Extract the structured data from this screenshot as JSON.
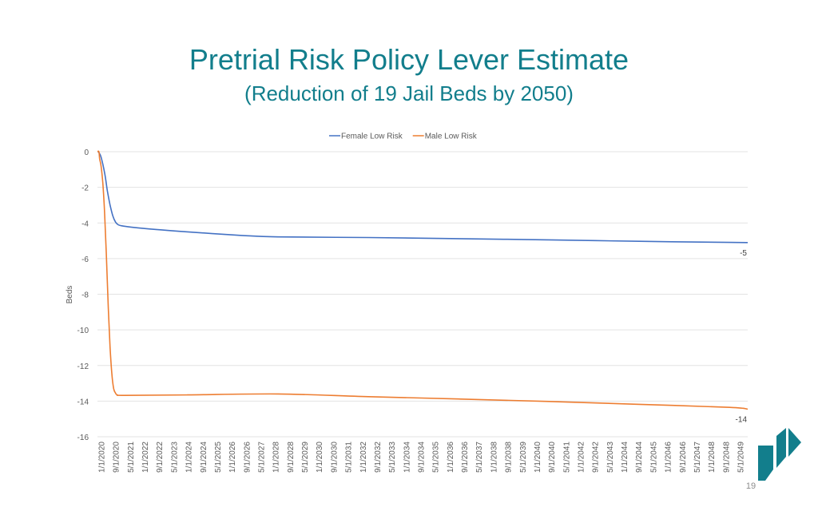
{
  "slide": {
    "title": "Pretrial Risk Policy Lever Estimate",
    "subtitle": "(Reduction of 19 Jail Beds by 2050)",
    "page_number": "19",
    "title_color": "#127e8c",
    "logo_color": "#127e8c",
    "logo_icon": "agency-logo-icon"
  },
  "chart_data": {
    "type": "line",
    "title": "",
    "xlabel": "",
    "ylabel": "Beds",
    "ylim": [
      -16,
      0
    ],
    "yticks": [
      0,
      -2,
      -4,
      -6,
      -8,
      -10,
      -12,
      -14,
      -16
    ],
    "grid": true,
    "legend_position": "top",
    "categories": [
      "1/1/2020",
      "9/1/2020",
      "5/1/2021",
      "1/1/2022",
      "9/1/2022",
      "5/1/2023",
      "1/1/2024",
      "9/1/2024",
      "5/1/2025",
      "1/1/2026",
      "9/1/2026",
      "5/1/2027",
      "1/1/2028",
      "9/1/2028",
      "5/1/2029",
      "1/1/2030",
      "9/1/2030",
      "5/1/2031",
      "1/1/2032",
      "9/1/2032",
      "5/1/2033",
      "1/1/2034",
      "9/1/2034",
      "5/1/2035",
      "1/1/2036",
      "9/1/2036",
      "5/1/2037",
      "1/1/2038",
      "9/1/2038",
      "5/1/2039",
      "1/1/2040",
      "9/1/2040",
      "5/1/2041",
      "1/1/2042",
      "9/1/2042",
      "5/1/2043",
      "1/1/2044",
      "9/1/2044",
      "5/1/2045",
      "1/1/2046",
      "9/1/2046",
      "5/1/2047",
      "1/1/2048",
      "9/1/2048",
      "5/1/2049"
    ],
    "series": [
      {
        "name": "Female Low Risk",
        "color": "#4472c4",
        "points": [
          {
            "t": 0,
            "y": 0
          },
          {
            "t": 0.04,
            "y": 0
          },
          {
            "t": 0.08,
            "y": -0.05
          },
          {
            "t": 0.2,
            "y": -0.3
          },
          {
            "t": 0.4,
            "y": -1.2
          },
          {
            "t": 0.55,
            "y": -2.2
          },
          {
            "t": 0.7,
            "y": -3.0
          },
          {
            "t": 0.85,
            "y": -3.6
          },
          {
            "t": 1.0,
            "y": -3.95
          },
          {
            "t": 1.15,
            "y": -4.1
          },
          {
            "t": 1.3,
            "y": -4.15
          },
          {
            "t": 1.6,
            "y": -4.2
          },
          {
            "t": 2.5,
            "y": -4.3
          },
          {
            "t": 5,
            "y": -4.5
          },
          {
            "t": 8,
            "y": -4.7
          },
          {
            "t": 10,
            "y": -4.78
          },
          {
            "t": 15,
            "y": -4.82
          },
          {
            "t": 20,
            "y": -4.88
          },
          {
            "t": 25,
            "y": -4.95
          },
          {
            "t": 30,
            "y": -5.03
          },
          {
            "t": 35,
            "y": -5.09
          },
          {
            "t": 36,
            "y": -5.1
          }
        ],
        "end_label": "-5"
      },
      {
        "name": "Male Low Risk",
        "color": "#ed7d31",
        "points": [
          {
            "t": 0,
            "y": 0
          },
          {
            "t": 0.08,
            "y": 0
          },
          {
            "t": 0.12,
            "y": -0.4
          },
          {
            "t": 0.2,
            "y": -0.8
          },
          {
            "t": 0.3,
            "y": -1.8
          },
          {
            "t": 0.4,
            "y": -3.5
          },
          {
            "t": 0.5,
            "y": -6.0
          },
          {
            "t": 0.6,
            "y": -8.8
          },
          {
            "t": 0.7,
            "y": -11.0
          },
          {
            "t": 0.8,
            "y": -12.5
          },
          {
            "t": 0.9,
            "y": -13.3
          },
          {
            "t": 1.0,
            "y": -13.55
          },
          {
            "t": 1.1,
            "y": -13.65
          },
          {
            "t": 1.5,
            "y": -13.68
          },
          {
            "t": 5,
            "y": -13.65
          },
          {
            "t": 10,
            "y": -13.6
          },
          {
            "t": 15,
            "y": -13.75
          },
          {
            "t": 20,
            "y": -13.88
          },
          {
            "t": 25,
            "y": -14.02
          },
          {
            "t": 30,
            "y": -14.18
          },
          {
            "t": 35,
            "y": -14.35
          },
          {
            "t": 36,
            "y": -14.45
          }
        ],
        "end_label": "-14"
      }
    ]
  }
}
